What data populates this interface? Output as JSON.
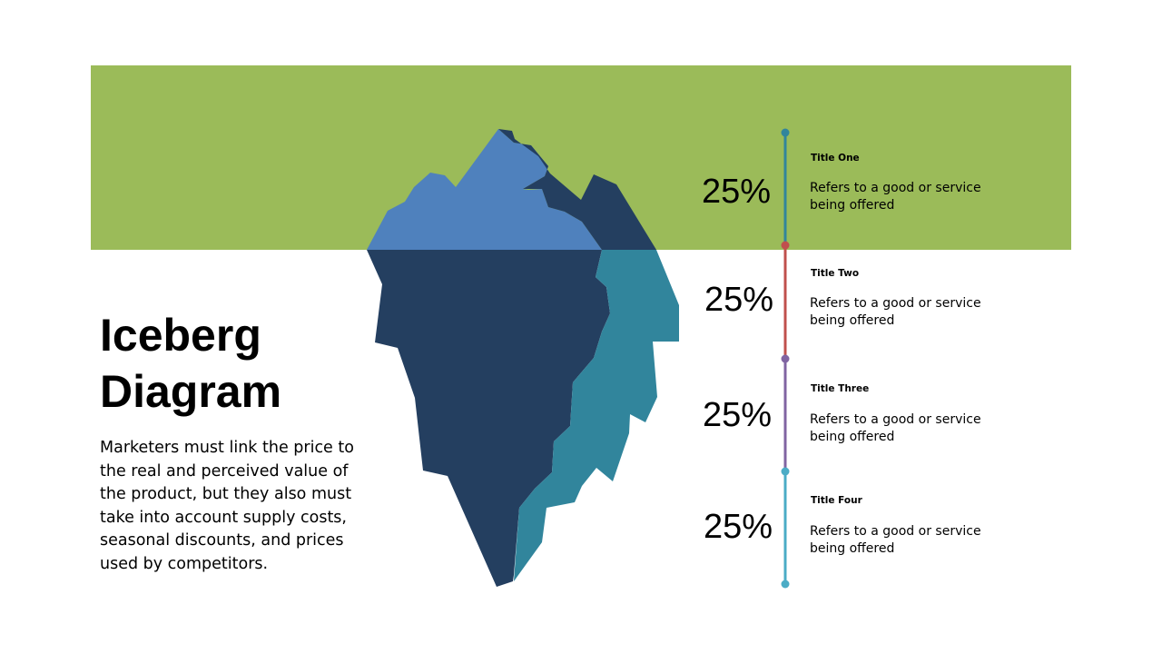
{
  "slide": {
    "title": "Iceberg\nDiagram",
    "description": "Marketers must link the price to the real and perceived value of the product, but they also must take into account supply costs, seasonal discounts, and prices used by competitors."
  },
  "colors": {
    "water_band": "#9bbb59",
    "tip_light": "#4f81bd",
    "body_dark": "#243f60",
    "body_teal": "#31859c"
  },
  "items": [
    {
      "percent": "25%",
      "title": "Title One",
      "text": "Refers to a good or service being offered",
      "color": "#31859c"
    },
    {
      "percent": "25%",
      "title": "Title Two",
      "text": "Refers to a good or service being offered",
      "color": "#c0504d"
    },
    {
      "percent": "25%",
      "title": "Title Three",
      "text": "Refers to a good or service being offered",
      "color": "#8064a2"
    },
    {
      "percent": "25%",
      "title": "Title Four",
      "text": "Refers to a good or service being offered",
      "color": "#4bacc6"
    }
  ]
}
